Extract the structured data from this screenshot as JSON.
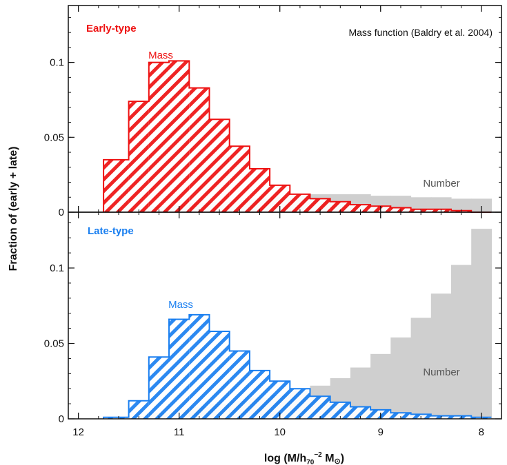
{
  "chart_data": {
    "type": "bar",
    "note": "Mass function (Baldry et al. 2004)",
    "xlabel_main": "log (M/h",
    "xlabel_sub": "70",
    "xlabel_sup": "−2",
    "xlabel_tail": " M",
    "xlabel_symbol": "⊙",
    "xlabel_close": ")",
    "ylabel": "Fraction of (early + late)",
    "xlim": [
      12.1,
      7.8
    ],
    "x_ticks": [
      "12",
      "11",
      "10",
      "9",
      "8"
    ],
    "bin_edges": [
      11.75,
      11.5,
      11.3,
      11.1,
      10.9,
      10.7,
      10.5,
      10.3,
      10.1,
      9.9,
      9.7,
      9.5,
      9.3,
      9.1,
      8.9,
      8.7,
      8.5,
      8.3,
      8.1,
      7.9
    ],
    "panels": [
      {
        "title": "Early-type",
        "color": "#ee1111",
        "ylim": [
          0,
          0.138
        ],
        "y_ticks": [
          "0",
          "0.05",
          "0.1"
        ],
        "series": [
          {
            "name": "Mass",
            "values": [
              0.035,
              0.074,
              0.1,
              0.101,
              0.083,
              0.062,
              0.044,
              0.029,
              0.018,
              0.012,
              0.009,
              0.007,
              0.005,
              0.004,
              0.003,
              0.002,
              0.002,
              0.001,
              0.0,
              0.0
            ]
          },
          {
            "name": "Number",
            "values": [
              0.0,
              0.002,
              0.004,
              0.005,
              0.006,
              0.007,
              0.008,
              0.009,
              0.01,
              0.011,
              0.012,
              0.012,
              0.012,
              0.011,
              0.011,
              0.01,
              0.01,
              0.009,
              0.009,
              0.009
            ]
          }
        ]
      },
      {
        "title": "Late-type",
        "color": "#1a7ff0",
        "ylim": [
          0,
          0.137
        ],
        "y_ticks": [
          "0",
          "0.05",
          "0.1"
        ],
        "series": [
          {
            "name": "Mass",
            "values": [
              0.001,
              0.012,
              0.041,
              0.066,
              0.069,
              0.058,
              0.045,
              0.032,
              0.025,
              0.02,
              0.015,
              0.011,
              0.008,
              0.006,
              0.004,
              0.003,
              0.002,
              0.002,
              0.001,
              0.001
            ]
          },
          {
            "name": "Number",
            "values": [
              0.0,
              0.002,
              0.004,
              0.006,
              0.008,
              0.01,
              0.012,
              0.014,
              0.016,
              0.019,
              0.022,
              0.027,
              0.034,
              0.043,
              0.054,
              0.067,
              0.083,
              0.102,
              0.126,
              0.126
            ]
          }
        ]
      }
    ]
  }
}
